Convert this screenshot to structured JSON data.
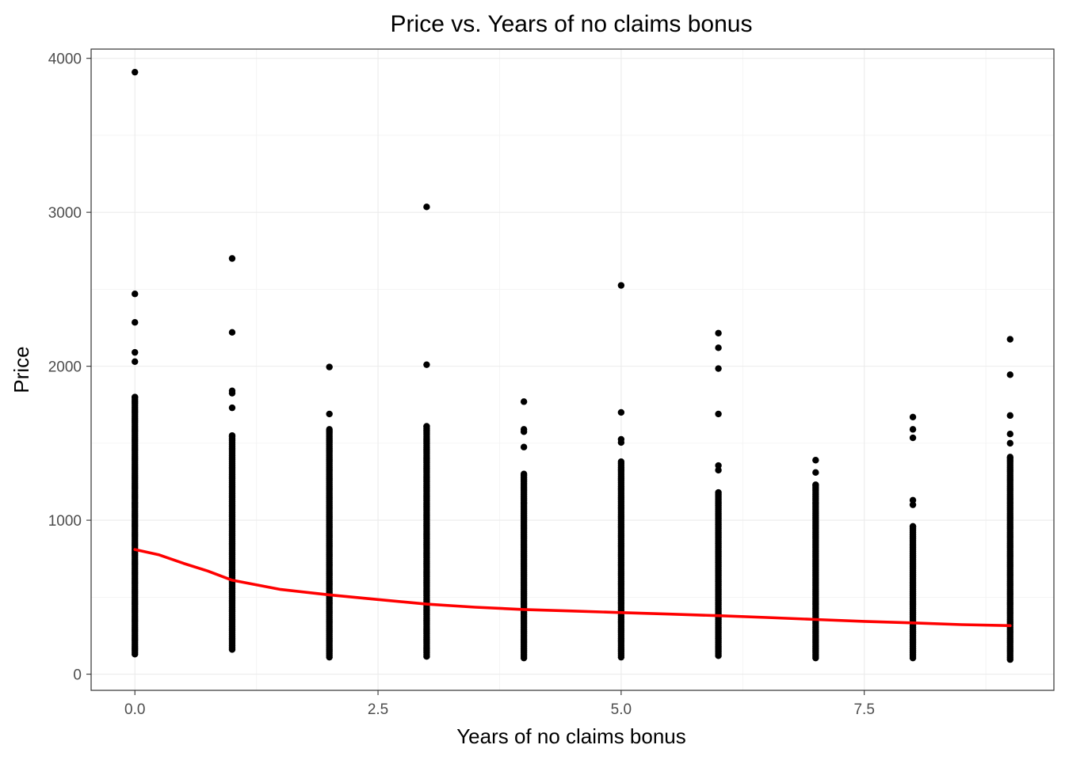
{
  "chart_data": {
    "type": "scatter",
    "title": "Price vs. Years of no claims bonus",
    "xlabel": "Years of no claims bonus",
    "ylabel": "Price",
    "xlim": [
      -0.45,
      9.45
    ],
    "ylim": [
      -105,
      4060
    ],
    "x_ticks": [
      0,
      2.5,
      5,
      7.5
    ],
    "x_tick_labels": [
      "0.0",
      "2.5",
      "5.0",
      "7.5"
    ],
    "x_minor_ticks": [
      1.25,
      3.75,
      6.25,
      8.75
    ],
    "y_ticks": [
      0,
      1000,
      2000,
      3000,
      4000
    ],
    "y_tick_labels": [
      "0",
      "1000",
      "2000",
      "3000",
      "4000"
    ],
    "y_minor_ticks": [
      500,
      1500,
      2500,
      3500
    ],
    "grid": true,
    "legend": "none",
    "point_color": "#000000",
    "series": [
      {
        "columns": [
          {
            "x": 0,
            "range": [
              130,
              1800
            ],
            "outliers": [
              3910,
              2470,
              2285,
              2090,
              2030
            ]
          },
          {
            "x": 1,
            "range": [
              160,
              1550
            ],
            "outliers": [
              2700,
              2220,
              1840,
              1825,
              1730
            ]
          },
          {
            "x": 2,
            "range": [
              110,
              1590
            ],
            "outliers": [
              1995,
              1690
            ]
          },
          {
            "x": 3,
            "range": [
              115,
              1610
            ],
            "outliers": [
              3035,
              2010
            ]
          },
          {
            "x": 4,
            "range": [
              105,
              1300
            ],
            "outliers": [
              1770,
              1590,
              1575,
              1475
            ]
          },
          {
            "x": 5,
            "range": [
              110,
              1380
            ],
            "outliers": [
              2525,
              1700,
              1525,
              1505
            ]
          },
          {
            "x": 6,
            "range": [
              120,
              1180
            ],
            "outliers": [
              2215,
              2120,
              1985,
              1690,
              1355,
              1325
            ]
          },
          {
            "x": 7,
            "range": [
              105,
              1230
            ],
            "outliers": [
              1390,
              1310
            ]
          },
          {
            "x": 8,
            "range": [
              105,
              960
            ],
            "outliers": [
              1670,
              1590,
              1535,
              1130,
              1100
            ]
          },
          {
            "x": 9,
            "range": [
              95,
              1410
            ],
            "outliers": [
              2175,
              1945,
              1680,
              1560,
              1500
            ]
          }
        ]
      },
      {
        "type": "smooth",
        "color": "#ff0000",
        "x": [
          0,
          0.25,
          0.5,
          0.75,
          1,
          1.5,
          2,
          2.5,
          3,
          3.5,
          4,
          4.5,
          5,
          5.5,
          6,
          6.5,
          7,
          7.5,
          8,
          8.5,
          9
        ],
        "values": [
          810,
          775,
          720,
          670,
          610,
          550,
          515,
          485,
          455,
          435,
          420,
          410,
          400,
          390,
          380,
          368,
          355,
          343,
          333,
          322,
          315
        ]
      }
    ]
  }
}
